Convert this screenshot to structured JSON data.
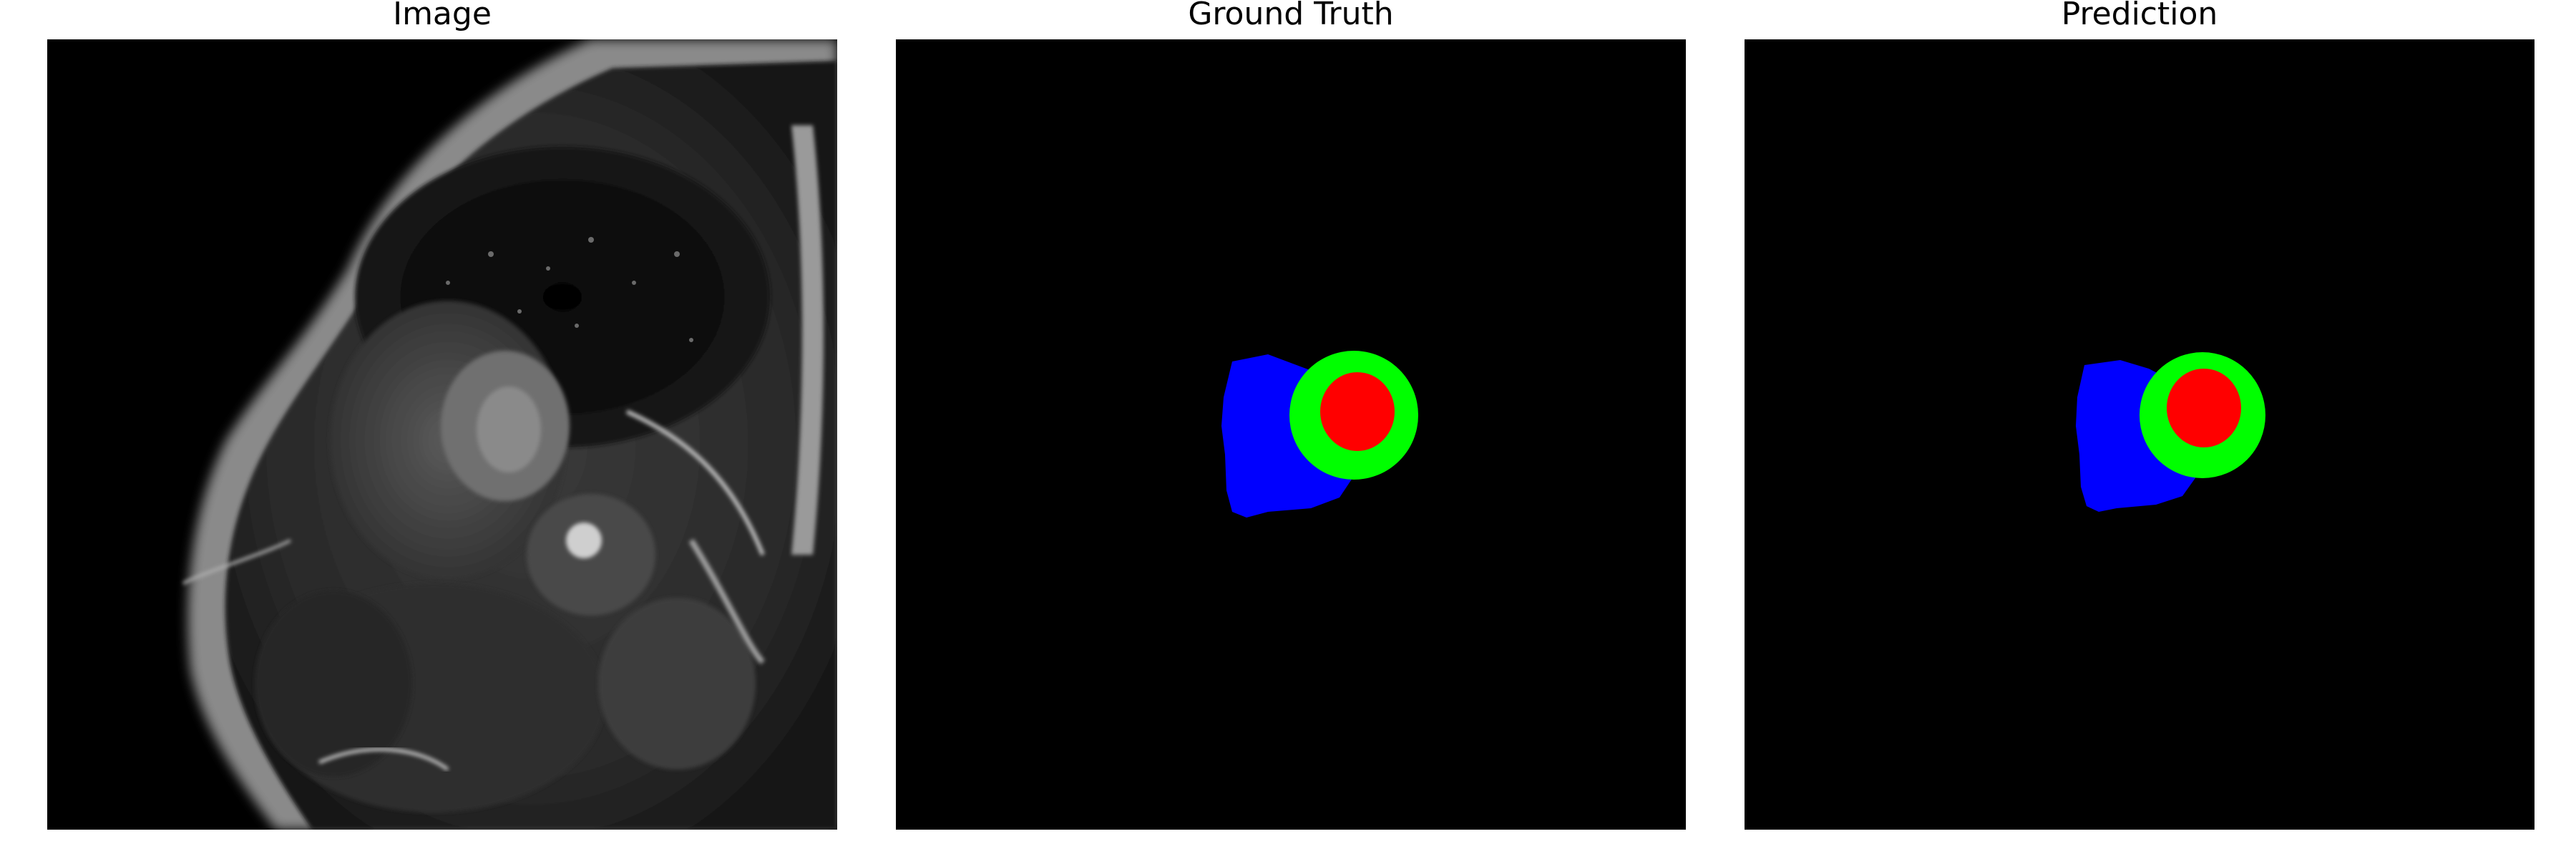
{
  "panels": [
    {
      "title": "Image"
    },
    {
      "title": "Ground Truth"
    },
    {
      "title": "Prediction"
    }
  ],
  "legend_colors": {
    "background": "#000000",
    "class_1": "#0000ff",
    "class_2": "#00ff00",
    "class_3": "#ff0000"
  }
}
